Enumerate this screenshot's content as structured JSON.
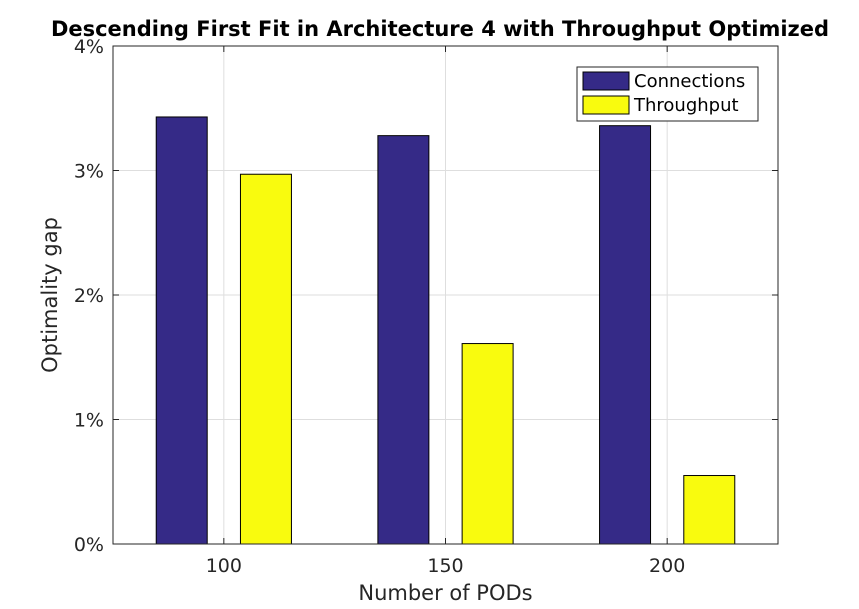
{
  "chart_data": {
    "type": "bar",
    "title": "Descending First Fit in Architecture 4 with Throughput Optimized",
    "xlabel": "Number of PODs",
    "ylabel": "Optimality gap",
    "categories": [
      "100",
      "150",
      "200"
    ],
    "series": [
      {
        "name": "Connections",
        "values": [
          3.43,
          3.28,
          3.36
        ],
        "color": "#352a87"
      },
      {
        "name": "Throughput",
        "values": [
          2.97,
          1.61,
          0.55
        ],
        "color": "#f9fb0e"
      }
    ],
    "ylim": [
      0,
      4
    ],
    "yticks": [
      "0%",
      "1%",
      "2%",
      "3%",
      "4%"
    ],
    "grid": true,
    "legend_position": "top-right"
  }
}
